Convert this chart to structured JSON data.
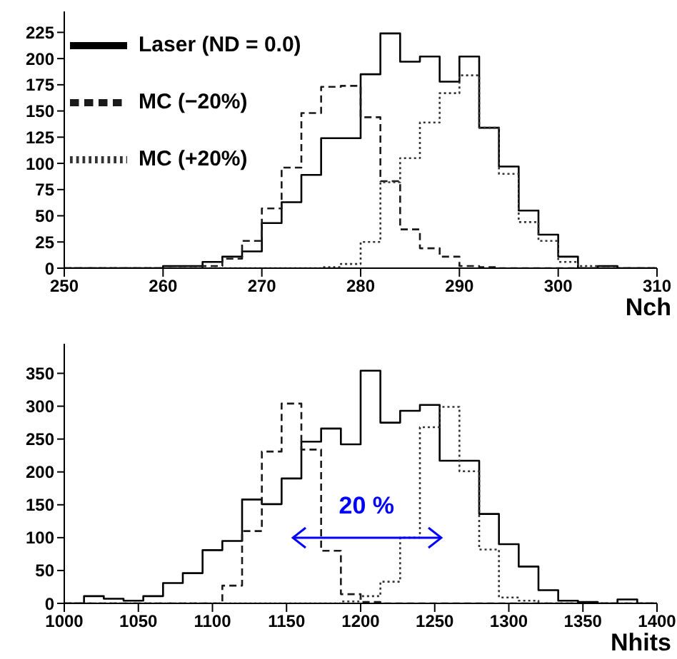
{
  "chart_data": [
    {
      "type": "histogram",
      "xlabel": "Nch",
      "bins": [
        250,
        252,
        254,
        256,
        258,
        260,
        262,
        264,
        266,
        268,
        270,
        272,
        274,
        276,
        278,
        280,
        282,
        284,
        286,
        288,
        290,
        292,
        294,
        296,
        298,
        300,
        302,
        304,
        306,
        308,
        310
      ],
      "xlim": [
        250,
        310
      ],
      "xticks": [
        250,
        260,
        270,
        280,
        290,
        300,
        310
      ],
      "ylim": [
        0,
        245
      ],
      "yticks": [
        0,
        25,
        50,
        75,
        100,
        125,
        150,
        175,
        200,
        225
      ],
      "legend": "top left",
      "series": [
        {
          "name": "Laser (ND = 0.0)",
          "color": "#000000",
          "line_style": "solid",
          "values": [
            0,
            0,
            0,
            0,
            0,
            2,
            2,
            6,
            11,
            16,
            43,
            63,
            89,
            124,
            124,
            185,
            224,
            197,
            202,
            178,
            202,
            134,
            97,
            55,
            32,
            11,
            0,
            2,
            0,
            0
          ]
        },
        {
          "name": "MC (−20%)",
          "color": "#1a1a1a",
          "line_style": "dashed",
          "values": [
            0,
            0,
            0,
            0,
            0,
            0,
            0,
            2,
            9,
            26,
            57,
            96,
            148,
            173,
            174,
            144,
            83,
            37,
            19,
            11,
            2,
            1,
            0,
            0,
            0,
            0,
            0,
            0,
            0,
            0
          ]
        },
        {
          "name": "MC (+20%)",
          "color": "#333333",
          "line_style": "dotted",
          "values": [
            0,
            0,
            0,
            0,
            0,
            0,
            0,
            0,
            0,
            0,
            0,
            0,
            0,
            1,
            4,
            25,
            82,
            105,
            139,
            167,
            184,
            134,
            90,
            44,
            26,
            6,
            2,
            0,
            0,
            0
          ]
        }
      ]
    },
    {
      "type": "histogram",
      "xlabel": "Nhits",
      "bins": [
        1000,
        1013.33,
        1026.67,
        1040,
        1053.33,
        1066.67,
        1080,
        1093.33,
        1106.67,
        1120,
        1133.33,
        1146.67,
        1160,
        1173.33,
        1186.67,
        1200,
        1213.33,
        1226.67,
        1240,
        1253.33,
        1266.67,
        1280,
        1293.33,
        1306.67,
        1320,
        1333.33,
        1346.67,
        1360,
        1373.33,
        1386.67,
        1400
      ],
      "xlim": [
        1000,
        1400
      ],
      "xticks": [
        1000,
        1050,
        1100,
        1150,
        1200,
        1250,
        1300,
        1350,
        1400
      ],
      "ylim": [
        0,
        395
      ],
      "yticks": [
        0,
        50,
        100,
        150,
        200,
        250,
        300,
        350
      ],
      "annotations": [
        "20 %"
      ],
      "series": [
        {
          "color": "#000000",
          "line_style": "solid",
          "values": [
            0,
            11,
            7,
            4,
            11,
            31,
            46,
            81,
            95,
            158,
            151,
            190,
            246,
            266,
            242,
            354,
            275,
            293,
            302,
            217,
            217,
            136,
            90,
            56,
            20,
            4,
            2,
            0,
            6,
            0
          ]
        },
        {
          "color": "#1a1a1a",
          "line_style": "dashed",
          "values": [
            0,
            0,
            0,
            0,
            0,
            0,
            0,
            0,
            27,
            110,
            231,
            304,
            234,
            80,
            14,
            2,
            0,
            0,
            0,
            0,
            0,
            0,
            0,
            0,
            0,
            0,
            0,
            0,
            0,
            0
          ]
        },
        {
          "color": "#333333",
          "line_style": "dotted",
          "values": [
            0,
            0,
            0,
            0,
            0,
            0,
            0,
            0,
            0,
            0,
            0,
            0,
            0,
            0,
            3,
            11,
            33,
            100,
            268,
            299,
            201,
            82,
            9,
            4,
            0,
            0,
            0,
            0,
            0,
            0
          ]
        }
      ]
    }
  ]
}
